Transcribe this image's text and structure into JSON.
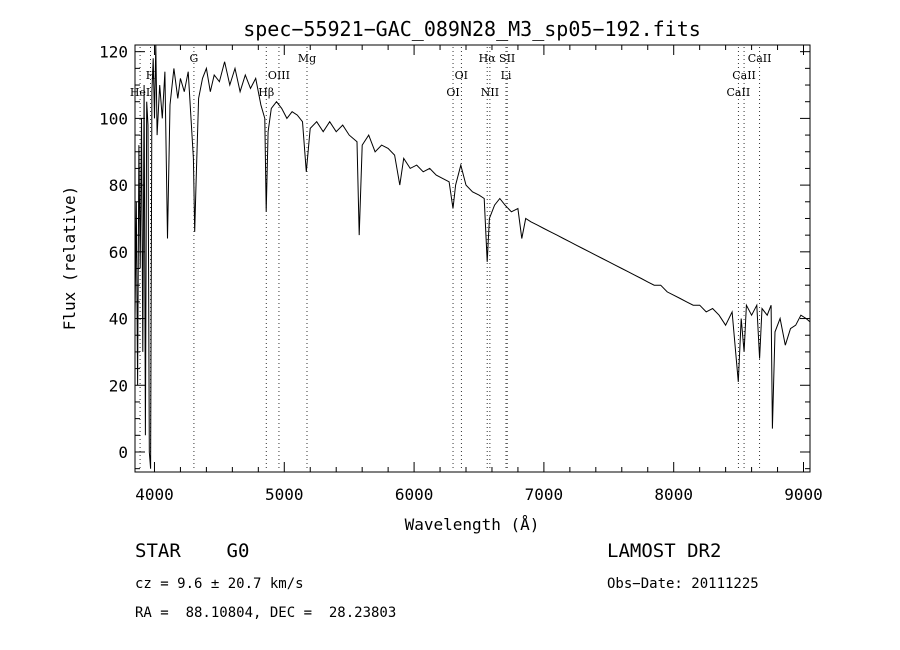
{
  "chart_data": {
    "type": "line",
    "title": "spec−55921−GAC_089N28_M3_sp05−192.fits",
    "xlabel": "Wavelength (Å)",
    "ylabel": "Flux (relative)",
    "xlim": [
      3850,
      9050
    ],
    "ylim": [
      -6,
      122
    ],
    "xticks": [
      4000,
      5000,
      6000,
      7000,
      8000,
      9000
    ],
    "yticks": [
      0,
      20,
      40,
      60,
      80,
      100,
      120
    ],
    "grid": false,
    "series": [
      {
        "values": [
          [
            3850,
            40
          ],
          [
            3860,
            75
          ],
          [
            3870,
            20
          ],
          [
            3880,
            92
          ],
          [
            3890,
            55
          ],
          [
            3900,
            100
          ],
          [
            3910,
            30
          ],
          [
            3920,
            110
          ],
          [
            3930,
            5
          ],
          [
            3940,
            105
          ],
          [
            3950,
            98
          ],
          [
            3960,
            0
          ],
          [
            3970,
            -5
          ],
          [
            3980,
            108
          ],
          [
            3990,
            118
          ],
          [
            4000,
            100
          ],
          [
            4010,
            122
          ],
          [
            4020,
            95
          ],
          [
            4040,
            110
          ],
          [
            4060,
            100
          ],
          [
            4080,
            114
          ],
          [
            4100,
            64
          ],
          [
            4120,
            104
          ],
          [
            4150,
            115
          ],
          [
            4180,
            106
          ],
          [
            4200,
            112
          ],
          [
            4230,
            108
          ],
          [
            4260,
            114
          ],
          [
            4300,
            88
          ],
          [
            4310,
            66
          ],
          [
            4320,
            80
          ],
          [
            4340,
            106
          ],
          [
            4370,
            112
          ],
          [
            4400,
            115
          ],
          [
            4430,
            108
          ],
          [
            4460,
            113
          ],
          [
            4500,
            111
          ],
          [
            4540,
            117
          ],
          [
            4580,
            110
          ],
          [
            4620,
            115
          ],
          [
            4660,
            108
          ],
          [
            4700,
            113
          ],
          [
            4740,
            109
          ],
          [
            4780,
            112
          ],
          [
            4820,
            104
          ],
          [
            4850,
            100
          ],
          [
            4861,
            72
          ],
          [
            4875,
            96
          ],
          [
            4900,
            103
          ],
          [
            4940,
            105
          ],
          [
            4980,
            103
          ],
          [
            5020,
            100
          ],
          [
            5060,
            102
          ],
          [
            5100,
            101
          ],
          [
            5140,
            99
          ],
          [
            5170,
            84
          ],
          [
            5200,
            97
          ],
          [
            5250,
            99
          ],
          [
            5300,
            96
          ],
          [
            5350,
            99
          ],
          [
            5400,
            96
          ],
          [
            5450,
            98
          ],
          [
            5500,
            95
          ],
          [
            5560,
            93
          ],
          [
            5577,
            65
          ],
          [
            5600,
            92
          ],
          [
            5650,
            95
          ],
          [
            5700,
            90
          ],
          [
            5750,
            92
          ],
          [
            5800,
            91
          ],
          [
            5850,
            89
          ],
          [
            5890,
            80
          ],
          [
            5920,
            88
          ],
          [
            5970,
            85
          ],
          [
            6020,
            86
          ],
          [
            6070,
            84
          ],
          [
            6120,
            85
          ],
          [
            6170,
            83
          ],
          [
            6220,
            82
          ],
          [
            6270,
            81
          ],
          [
            6300,
            73
          ],
          [
            6320,
            80
          ],
          [
            6360,
            86
          ],
          [
            6400,
            80
          ],
          [
            6450,
            78
          ],
          [
            6500,
            77
          ],
          [
            6540,
            76
          ],
          [
            6563,
            57
          ],
          [
            6580,
            70
          ],
          [
            6620,
            74
          ],
          [
            6660,
            76
          ],
          [
            6700,
            74
          ],
          [
            6750,
            72
          ],
          [
            6800,
            73
          ],
          [
            6830,
            64
          ],
          [
            6860,
            70
          ],
          [
            6900,
            69
          ],
          [
            6950,
            68
          ],
          [
            7000,
            67
          ],
          [
            7050,
            66
          ],
          [
            7100,
            65
          ],
          [
            7150,
            64
          ],
          [
            7200,
            63
          ],
          [
            7250,
            62
          ],
          [
            7300,
            61
          ],
          [
            7350,
            60
          ],
          [
            7400,
            59
          ],
          [
            7450,
            58
          ],
          [
            7500,
            57
          ],
          [
            7550,
            56
          ],
          [
            7600,
            55
          ],
          [
            7650,
            54
          ],
          [
            7700,
            53
          ],
          [
            7750,
            52
          ],
          [
            7800,
            51
          ],
          [
            7850,
            50
          ],
          [
            7900,
            50
          ],
          [
            7950,
            48
          ],
          [
            8000,
            47
          ],
          [
            8050,
            46
          ],
          [
            8100,
            45
          ],
          [
            8150,
            44
          ],
          [
            8200,
            44
          ],
          [
            8250,
            42
          ],
          [
            8300,
            43
          ],
          [
            8350,
            41
          ],
          [
            8400,
            38
          ],
          [
            8450,
            42
          ],
          [
            8498,
            21
          ],
          [
            8520,
            40
          ],
          [
            8542,
            30
          ],
          [
            8560,
            44
          ],
          [
            8600,
            41
          ],
          [
            8640,
            44
          ],
          [
            8662,
            28
          ],
          [
            8680,
            43
          ],
          [
            8720,
            41
          ],
          [
            8750,
            44
          ],
          [
            8760,
            7
          ],
          [
            8780,
            36
          ],
          [
            8820,
            40
          ],
          [
            8860,
            32
          ],
          [
            8900,
            37
          ],
          [
            8940,
            38
          ],
          [
            8980,
            41
          ],
          [
            9020,
            40
          ],
          [
            9050,
            39
          ]
        ]
      }
    ],
    "lines": [
      {
        "label": "HeI",
        "x": 3889,
        "tier": 2
      },
      {
        "label": "H",
        "x": 3970,
        "tier": 1
      },
      {
        "label": "G",
        "x": 4304,
        "tier": 0
      },
      {
        "label": "Hβ",
        "x": 4861,
        "tier": 2
      },
      {
        "label": "OIII",
        "x": 4959,
        "tier": 1
      },
      {
        "label": "Mg",
        "x": 5175,
        "tier": 0
      },
      {
        "label": "OI",
        "x": 6300,
        "tier": 2
      },
      {
        "label": "OI",
        "x": 6364,
        "tier": 1
      },
      {
        "label": "Hα",
        "x": 6563,
        "tier": 0
      },
      {
        "label": "NII",
        "x": 6584,
        "tier": 2
      },
      {
        "label": "SII",
        "x": 6717,
        "tier": 0
      },
      {
        "label": "Li",
        "x": 6708,
        "tier": 1
      },
      {
        "label": "CaII",
        "x": 8498,
        "tier": 2
      },
      {
        "label": "CaII",
        "x": 8542,
        "tier": 1
      },
      {
        "label": "CaII",
        "x": 8662,
        "tier": 0
      }
    ]
  },
  "info": {
    "class_label": "STAR    G0",
    "survey_label": "LAMOST DR2",
    "cz": "cz = 9.6 ± 20.7 km/s",
    "obs_date": "Obs−Date: 20111225",
    "coords": "RA =  88.10804, DEC =  28.23803"
  }
}
